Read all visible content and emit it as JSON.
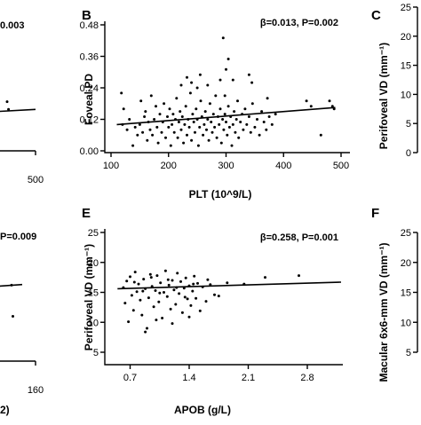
{
  "chart_data": [
    {
      "panel": "A",
      "type": "scatter",
      "stat_text": "β=0.010, P=0.003",
      "visible_stat_text": "0.003",
      "x_ticks": [
        "500"
      ],
      "x_range": [
        0,
        500
      ],
      "y_range": [
        0,
        0.48
      ],
      "points": [
        {
          "x": 460,
          "y": 0.19
        },
        {
          "x": 462,
          "y": 0.16
        },
        {
          "x": 385,
          "y": 0.06
        },
        {
          "x": 388,
          "y": 0.055
        }
      ],
      "regression": {
        "x": [
          300,
          500
        ],
        "y": [
          0.13,
          0.16
        ]
      }
    },
    {
      "panel": "B",
      "type": "scatter",
      "stat_text": "β=0.013, P=0.002",
      "xlabel": "PLT (10^9/L)",
      "ylabel": "Foveal PD",
      "x_ticks": [
        "100",
        "200",
        "300",
        "400",
        "500"
      ],
      "x_tick_values": [
        100,
        200,
        300,
        400,
        500
      ],
      "y_ticks": [
        "0.00",
        "0.12",
        "0.24",
        "0.36",
        "0.48"
      ],
      "y_tick_values": [
        0,
        0.12,
        0.24,
        0.36,
        0.48
      ],
      "x_range": [
        100,
        500
      ],
      "y_range": [
        0,
        0.48
      ],
      "points": [
        {
          "x": 118,
          "y": 0.22
        },
        {
          "x": 120,
          "y": 0.1
        },
        {
          "x": 122,
          "y": 0.16
        },
        {
          "x": 128,
          "y": 0.08
        },
        {
          "x": 132,
          "y": 0.12
        },
        {
          "x": 138,
          "y": 0.02
        },
        {
          "x": 142,
          "y": 0.09
        },
        {
          "x": 146,
          "y": 0.06
        },
        {
          "x": 150,
          "y": 0.1
        },
        {
          "x": 152,
          "y": 0.19
        },
        {
          "x": 155,
          "y": 0.07
        },
        {
          "x": 158,
          "y": 0.13
        },
        {
          "x": 160,
          "y": 0.15
        },
        {
          "x": 163,
          "y": 0.04
        },
        {
          "x": 165,
          "y": 0.11
        },
        {
          "x": 168,
          "y": 0.08
        },
        {
          "x": 170,
          "y": 0.21
        },
        {
          "x": 172,
          "y": 0.06
        },
        {
          "x": 175,
          "y": 0.12
        },
        {
          "x": 178,
          "y": 0.17
        },
        {
          "x": 180,
          "y": 0.09
        },
        {
          "x": 182,
          "y": 0.03
        },
        {
          "x": 185,
          "y": 0.14
        },
        {
          "x": 188,
          "y": 0.07
        },
        {
          "x": 190,
          "y": 0.11
        },
        {
          "x": 192,
          "y": 0.18
        },
        {
          "x": 195,
          "y": 0.05
        },
        {
          "x": 198,
          "y": 0.13
        },
        {
          "x": 200,
          "y": 0.09
        },
        {
          "x": 202,
          "y": 0.16
        },
        {
          "x": 204,
          "y": 0.02
        },
        {
          "x": 206,
          "y": 0.1
        },
        {
          "x": 208,
          "y": 0.14
        },
        {
          "x": 210,
          "y": 0.07
        },
        {
          "x": 212,
          "y": 0.12
        },
        {
          "x": 214,
          "y": 0.2
        },
        {
          "x": 216,
          "y": 0.05
        },
        {
          "x": 218,
          "y": 0.11
        },
        {
          "x": 220,
          "y": 0.15
        },
        {
          "x": 222,
          "y": 0.08
        },
        {
          "x": 224,
          "y": 0.13
        },
        {
          "x": 226,
          "y": 0.03
        },
        {
          "x": 228,
          "y": 0.1
        },
        {
          "x": 230,
          "y": 0.17
        },
        {
          "x": 232,
          "y": 0.06
        },
        {
          "x": 234,
          "y": 0.12
        },
        {
          "x": 236,
          "y": 0.09
        },
        {
          "x": 238,
          "y": 0.22
        },
        {
          "x": 240,
          "y": 0.04
        },
        {
          "x": 242,
          "y": 0.14
        },
        {
          "x": 244,
          "y": 0.11
        },
        {
          "x": 246,
          "y": 0.07
        },
        {
          "x": 248,
          "y": 0.16
        },
        {
          "x": 250,
          "y": 0.12
        },
        {
          "x": 252,
          "y": 0.02
        },
        {
          "x": 254,
          "y": 0.09
        },
        {
          "x": 256,
          "y": 0.19
        },
        {
          "x": 258,
          "y": 0.13
        },
        {
          "x": 260,
          "y": 0.06
        },
        {
          "x": 262,
          "y": 0.1
        },
        {
          "x": 264,
          "y": 0.15
        },
        {
          "x": 266,
          "y": 0.08
        },
        {
          "x": 268,
          "y": 0.12
        },
        {
          "x": 270,
          "y": 0.04
        },
        {
          "x": 272,
          "y": 0.18
        },
        {
          "x": 274,
          "y": 0.11
        },
        {
          "x": 276,
          "y": 0.07
        },
        {
          "x": 278,
          "y": 0.14
        },
        {
          "x": 280,
          "y": 0.09
        },
        {
          "x": 282,
          "y": 0.21
        },
        {
          "x": 284,
          "y": 0.05
        },
        {
          "x": 286,
          "y": 0.13
        },
        {
          "x": 288,
          "y": 0.1
        },
        {
          "x": 290,
          "y": 0.16
        },
        {
          "x": 292,
          "y": 0.03
        },
        {
          "x": 294,
          "y": 0.12
        },
        {
          "x": 296,
          "y": 0.08
        },
        {
          "x": 298,
          "y": 0.14
        },
        {
          "x": 300,
          "y": 0.11
        },
        {
          "x": 302,
          "y": 0.06
        },
        {
          "x": 304,
          "y": 0.17
        },
        {
          "x": 306,
          "y": 0.09
        },
        {
          "x": 308,
          "y": 0.13
        },
        {
          "x": 310,
          "y": 0.02
        },
        {
          "x": 312,
          "y": 0.1
        },
        {
          "x": 314,
          "y": 0.15
        },
        {
          "x": 316,
          "y": 0.07
        },
        {
          "x": 318,
          "y": 0.12
        },
        {
          "x": 320,
          "y": 0.19
        },
        {
          "x": 322,
          "y": 0.05
        },
        {
          "x": 325,
          "y": 0.11
        },
        {
          "x": 328,
          "y": 0.14
        },
        {
          "x": 330,
          "y": 0.08
        },
        {
          "x": 333,
          "y": 0.16
        },
        {
          "x": 336,
          "y": 0.1
        },
        {
          "x": 340,
          "y": 0.13
        },
        {
          "x": 343,
          "y": 0.07
        },
        {
          "x": 346,
          "y": 0.18
        },
        {
          "x": 350,
          "y": 0.09
        },
        {
          "x": 354,
          "y": 0.12
        },
        {
          "x": 358,
          "y": 0.06
        },
        {
          "x": 362,
          "y": 0.15
        },
        {
          "x": 366,
          "y": 0.11
        },
        {
          "x": 370,
          "y": 0.08
        },
        {
          "x": 375,
          "y": 0.13
        },
        {
          "x": 380,
          "y": 0.1
        },
        {
          "x": 386,
          "y": 0.14
        },
        {
          "x": 232,
          "y": 0.28
        },
        {
          "x": 240,
          "y": 0.26
        },
        {
          "x": 255,
          "y": 0.29
        },
        {
          "x": 268,
          "y": 0.25
        },
        {
          "x": 290,
          "y": 0.27
        },
        {
          "x": 300,
          "y": 0.31
        },
        {
          "x": 304,
          "y": 0.35
        },
        {
          "x": 312,
          "y": 0.27
        },
        {
          "x": 340,
          "y": 0.29
        },
        {
          "x": 345,
          "y": 0.26
        },
        {
          "x": 372,
          "y": 0.2
        },
        {
          "x": 250,
          "y": 0.24
        },
        {
          "x": 222,
          "y": 0.25
        },
        {
          "x": 295,
          "y": 0.43
        },
        {
          "x": 298,
          "y": 0.21
        },
        {
          "x": 440,
          "y": 0.19
        },
        {
          "x": 448,
          "y": 0.17
        },
        {
          "x": 465,
          "y": 0.06
        },
        {
          "x": 480,
          "y": 0.19
        },
        {
          "x": 485,
          "y": 0.17
        },
        {
          "x": 488,
          "y": 0.16
        }
      ],
      "regression": {
        "x": [
          110,
          490
        ],
        "y": [
          0.1,
          0.165
        ]
      }
    },
    {
      "panel": "C",
      "type": "scatter",
      "ylabel": "Perifoveal VD (mm⁻¹)",
      "y_ticks": [
        "0",
        "5",
        "10",
        "15",
        "20",
        "25"
      ],
      "y_tick_values": [
        0,
        5,
        10,
        15,
        20,
        25
      ],
      "y_range": [
        0,
        25
      ]
    },
    {
      "panel": "D",
      "type": "scatter",
      "stat_text": "β=0.010, P=0.009",
      "visible_stat_text": "P=0.009",
      "x_ticks": [
        "160"
      ],
      "xlabel_fragment": "2)",
      "x_range": [
        0,
        160
      ],
      "y_range": [
        5,
        25
      ],
      "points": [
        {
          "x": 130,
          "y": 16.8
        },
        {
          "x": 120,
          "y": 16.0
        },
        {
          "x": 110,
          "y": 15.4
        },
        {
          "x": 142,
          "y": 16.2
        },
        {
          "x": 143,
          "y": 11.0
        }
      ],
      "regression": {
        "x": [
          90,
          150
        ],
        "y": [
          15.4,
          16.3
        ]
      }
    },
    {
      "panel": "E",
      "type": "scatter",
      "stat_text": "β=0.258,  P=0.001",
      "xlabel": "APOB (g/L)",
      "ylabel": "Perifoveal VD (mm⁻¹)",
      "x_ticks": [
        "0.7",
        "1.4",
        "2.1",
        "2.8"
      ],
      "x_tick_values": [
        0.7,
        1.4,
        2.1,
        2.8
      ],
      "y_ticks": [
        "5",
        "10",
        "15",
        "20",
        "25"
      ],
      "y_tick_values": [
        5,
        10,
        15,
        20,
        25
      ],
      "x_range": [
        0.4,
        3.2
      ],
      "y_range": [
        5,
        25
      ],
      "points": [
        {
          "x": 0.62,
          "y": 15.8
        },
        {
          "x": 0.64,
          "y": 13.2
        },
        {
          "x": 0.66,
          "y": 16.9
        },
        {
          "x": 0.68,
          "y": 10.1
        },
        {
          "x": 0.7,
          "y": 17.6
        },
        {
          "x": 0.72,
          "y": 14.5
        },
        {
          "x": 0.74,
          "y": 12.0
        },
        {
          "x": 0.76,
          "y": 18.4
        },
        {
          "x": 0.78,
          "y": 15.1
        },
        {
          "x": 0.8,
          "y": 16.4
        },
        {
          "x": 0.82,
          "y": 13.7
        },
        {
          "x": 0.84,
          "y": 11.2
        },
        {
          "x": 0.86,
          "y": 17.2
        },
        {
          "x": 0.88,
          "y": 15.6
        },
        {
          "x": 0.9,
          "y": 9.0
        },
        {
          "x": 0.92,
          "y": 14.1
        },
        {
          "x": 0.94,
          "y": 18.0
        },
        {
          "x": 0.96,
          "y": 16.0
        },
        {
          "x": 0.98,
          "y": 12.6
        },
        {
          "x": 1.0,
          "y": 15.3
        },
        {
          "x": 1.02,
          "y": 17.8
        },
        {
          "x": 1.04,
          "y": 13.4
        },
        {
          "x": 1.06,
          "y": 16.6
        },
        {
          "x": 1.08,
          "y": 10.7
        },
        {
          "x": 1.1,
          "y": 15.0
        },
        {
          "x": 1.12,
          "y": 18.6
        },
        {
          "x": 1.14,
          "y": 14.3
        },
        {
          "x": 1.16,
          "y": 16.2
        },
        {
          "x": 1.18,
          "y": 12.2
        },
        {
          "x": 1.2,
          "y": 17.0
        },
        {
          "x": 1.22,
          "y": 15.4
        },
        {
          "x": 1.24,
          "y": 13.0
        },
        {
          "x": 1.26,
          "y": 18.2
        },
        {
          "x": 1.28,
          "y": 14.8
        },
        {
          "x": 1.3,
          "y": 16.8
        },
        {
          "x": 1.32,
          "y": 11.6
        },
        {
          "x": 1.34,
          "y": 15.7
        },
        {
          "x": 1.36,
          "y": 17.4
        },
        {
          "x": 1.38,
          "y": 13.9
        },
        {
          "x": 1.4,
          "y": 16.1
        },
        {
          "x": 1.42,
          "y": 12.8
        },
        {
          "x": 1.44,
          "y": 15.2
        },
        {
          "x": 1.46,
          "y": 17.7
        },
        {
          "x": 1.48,
          "y": 14.0
        },
        {
          "x": 1.5,
          "y": 16.5
        },
        {
          "x": 1.53,
          "y": 11.9
        },
        {
          "x": 1.56,
          "y": 15.9
        },
        {
          "x": 1.6,
          "y": 13.5
        },
        {
          "x": 1.65,
          "y": 16.3
        },
        {
          "x": 1.7,
          "y": 14.6
        },
        {
          "x": 0.75,
          "y": 16.7
        },
        {
          "x": 0.85,
          "y": 15.2
        },
        {
          "x": 0.95,
          "y": 17.5
        },
        {
          "x": 1.05,
          "y": 14.9
        },
        {
          "x": 1.15,
          "y": 17.1
        },
        {
          "x": 1.25,
          "y": 15.8
        },
        {
          "x": 1.35,
          "y": 14.2
        },
        {
          "x": 1.45,
          "y": 16.4
        },
        {
          "x": 0.88,
          "y": 8.4
        },
        {
          "x": 1.01,
          "y": 10.4
        },
        {
          "x": 1.2,
          "y": 9.8
        },
        {
          "x": 1.4,
          "y": 10.9
        },
        {
          "x": 1.62,
          "y": 17.1
        },
        {
          "x": 1.75,
          "y": 14.4
        },
        {
          "x": 1.85,
          "y": 16.6
        },
        {
          "x": 2.05,
          "y": 16.4
        },
        {
          "x": 2.3,
          "y": 17.5
        },
        {
          "x": 2.7,
          "y": 17.8
        }
      ],
      "regression": {
        "x": [
          0.55,
          3.2
        ],
        "y": [
          15.6,
          16.7
        ]
      }
    },
    {
      "panel": "F",
      "type": "scatter",
      "ylabel": "Macular 6x6-mm VD (mm⁻¹)",
      "y_ticks": [
        "5",
        "10",
        "15",
        "20",
        "25"
      ],
      "y_tick_values": [
        5,
        10,
        15,
        20,
        25
      ],
      "y_range": [
        5,
        25
      ]
    }
  ]
}
